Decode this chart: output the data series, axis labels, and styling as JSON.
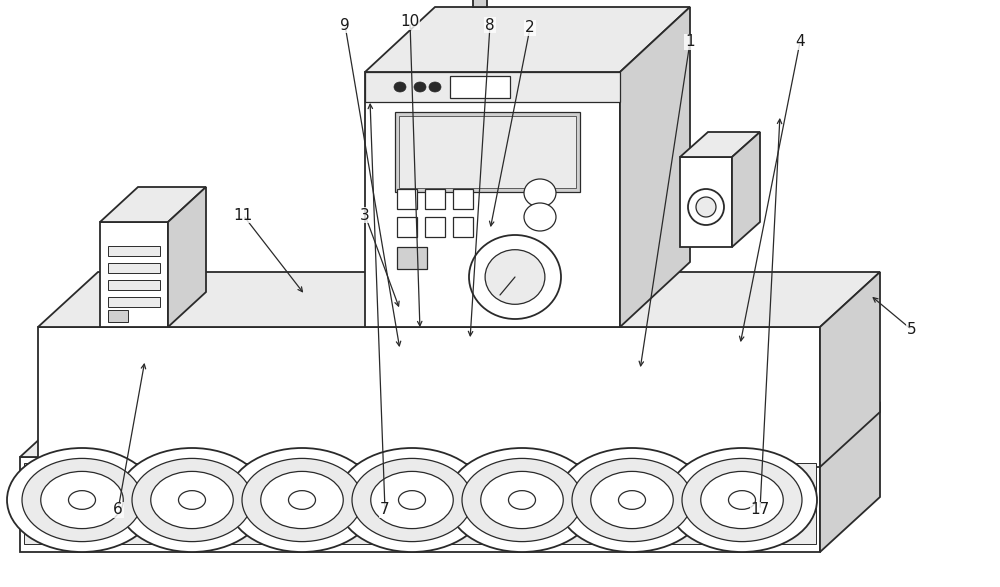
{
  "background_color": "#ffffff",
  "line_color": "#2a2a2a",
  "fill_white": "#ffffff",
  "fill_light": "#ebebeb",
  "fill_medium": "#d0d0d0",
  "fill_dark": "#b8b8b8",
  "lw_main": 1.3,
  "lw_detail": 0.9,
  "fig_w": 10.0,
  "fig_h": 5.87
}
